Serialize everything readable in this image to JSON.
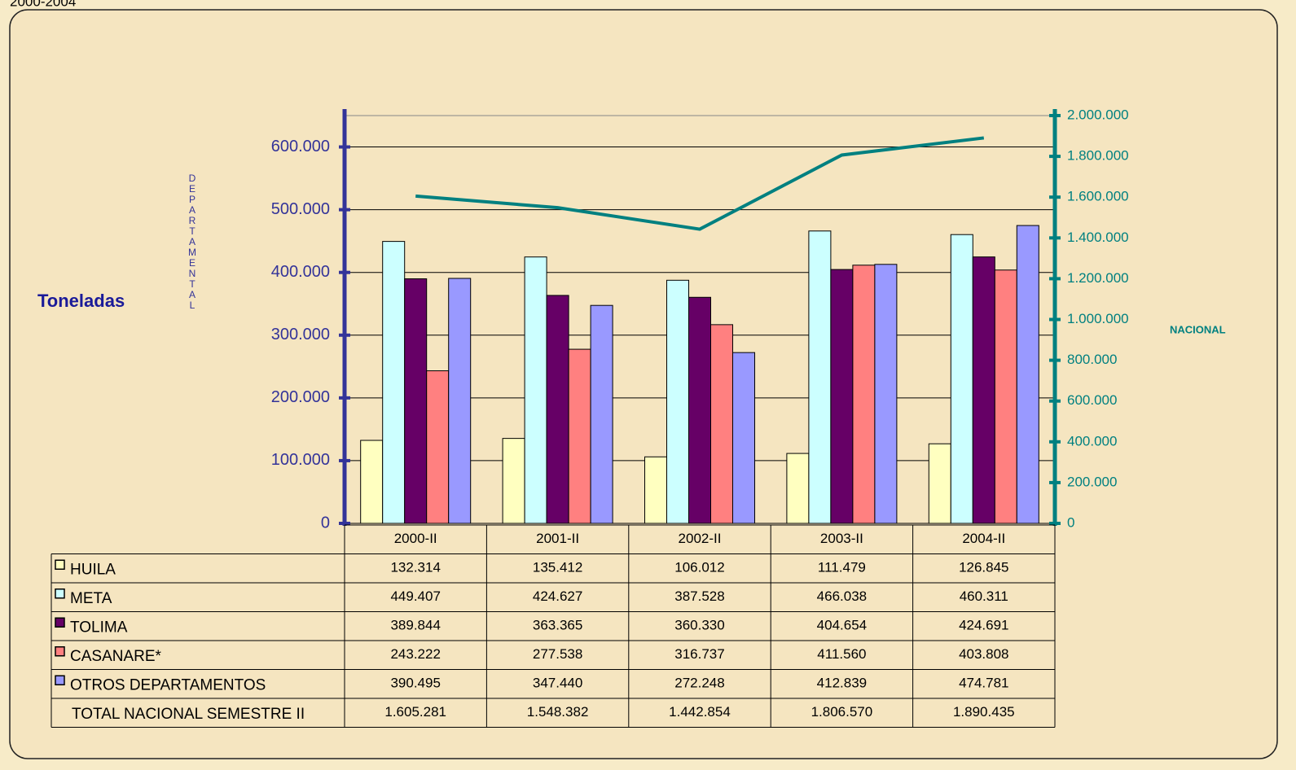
{
  "chart_data": {
    "type": "bar",
    "subtitle": "2000-2004",
    "y_label": "Toneladas",
    "y_sublabel": "DEPARTAMENTAL",
    "y2_label": "NACIONAL",
    "categories": [
      "2000-II",
      "2001-II",
      "2002-II",
      "2003-II",
      "2004-II"
    ],
    "ylim": [
      0,
      650000
    ],
    "yticks": [
      0,
      {
        "value": 100000,
        "label": "100.000"
      },
      {
        "value": 200000,
        "label": "200.000"
      },
      {
        "value": 300000,
        "label": "300.000"
      },
      {
        "value": 400000,
        "label": "400.000"
      },
      {
        "value": 500000,
        "label": "500.000"
      },
      {
        "value": 600000,
        "label": "600.000"
      }
    ],
    "y2lim": [
      0,
      2000000
    ],
    "y2ticks": [
      0,
      {
        "value": 200000,
        "label": "200.000"
      },
      {
        "value": 400000,
        "label": "400.000"
      },
      {
        "value": 600000,
        "label": "600.000"
      },
      {
        "value": 800000,
        "label": "800.000"
      },
      {
        "value": 1000000,
        "label": "1.000.000"
      },
      {
        "value": 1200000,
        "label": "1.200.000"
      },
      {
        "value": 1400000,
        "label": "1.400.000"
      },
      {
        "value": 1600000,
        "label": "1.600.000"
      },
      {
        "value": 1800000,
        "label": "1.800.000"
      },
      {
        "value": 2000000,
        "label": "2.000.000"
      }
    ],
    "grid": true,
    "series": [
      {
        "name": "HUILA",
        "color": "#ffffc0",
        "values": [
          132314,
          135412,
          106012,
          111479,
          126845
        ],
        "value_labels": [
          "132.314",
          "135.412",
          "106.012",
          "111.479",
          "126.845"
        ]
      },
      {
        "name": "META",
        "color": "#ccffff",
        "values": [
          449407,
          424627,
          387528,
          466038,
          460311
        ],
        "value_labels": [
          "449.407",
          "424.627",
          "387.528",
          "466.038",
          "460.311"
        ]
      },
      {
        "name": "TOLIMA",
        "color": "#660066",
        "values": [
          389844,
          363365,
          360330,
          404654,
          424691
        ],
        "value_labels": [
          "389.844",
          "363.365",
          "360.330",
          "404.654",
          "424.691"
        ]
      },
      {
        "name": "CASANARE*",
        "color": "#ff8080",
        "values": [
          243222,
          277538,
          316737,
          411560,
          403808
        ],
        "value_labels": [
          "243.222",
          "277.538",
          "316.737",
          "411.560",
          "403.808"
        ]
      },
      {
        "name": "OTROS DEPARTAMENTOS",
        "color": "#9999ff",
        "values": [
          390495,
          347440,
          272248,
          412839,
          474781
        ],
        "value_labels": [
          "390.495",
          "347.440",
          "272.248",
          "412.839",
          "474.781"
        ]
      },
      {
        "name": "TOTAL NACIONAL SEMESTRE II",
        "type": "line",
        "axis": "y2",
        "color": "#008080",
        "values": [
          1605281,
          1548382,
          1442854,
          1806570,
          1890435
        ],
        "value_labels": [
          "1.605.281",
          "1.548.382",
          "1.442.854",
          "1.806.570",
          "1.890.435"
        ]
      }
    ]
  }
}
